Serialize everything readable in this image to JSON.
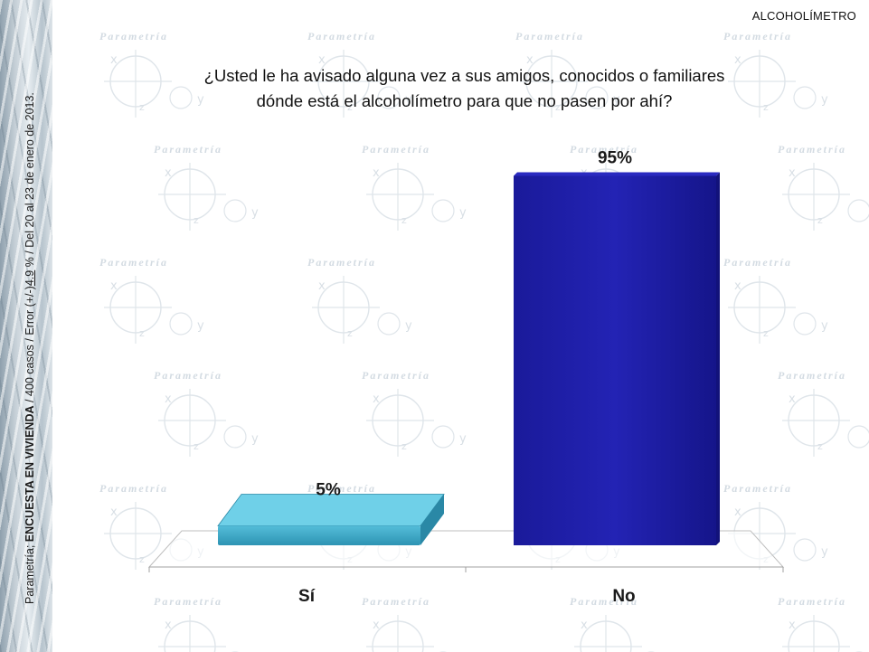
{
  "header": {
    "section_label": "ALCOHOLÍMETRO"
  },
  "sidebar": {
    "source_prefix": "Parametría; ",
    "survey_type": "ENCUESTA EN VIVIENDA",
    "middle": " / 400 casos / Error (+/-)",
    "error_value": "4.9",
    "suffix": " % / Del 20  al 23  de enero de 2013."
  },
  "watermark": {
    "brand_text": "Parametría"
  },
  "chart_data": {
    "type": "bar",
    "title": "¿Usted le ha avisado alguna vez a sus amigos, conocidos o familiares dónde está el alcoholímetro para que no pasen por ahí?",
    "categories": [
      "Sí",
      "No"
    ],
    "values": [
      5,
      95
    ],
    "value_labels": [
      "5%",
      "95%"
    ],
    "unit": "%",
    "ylim": [
      0,
      100
    ],
    "colors": [
      "#3faccc",
      "#1a1aa3"
    ],
    "grid": false,
    "legend": "none",
    "style": "3d"
  }
}
